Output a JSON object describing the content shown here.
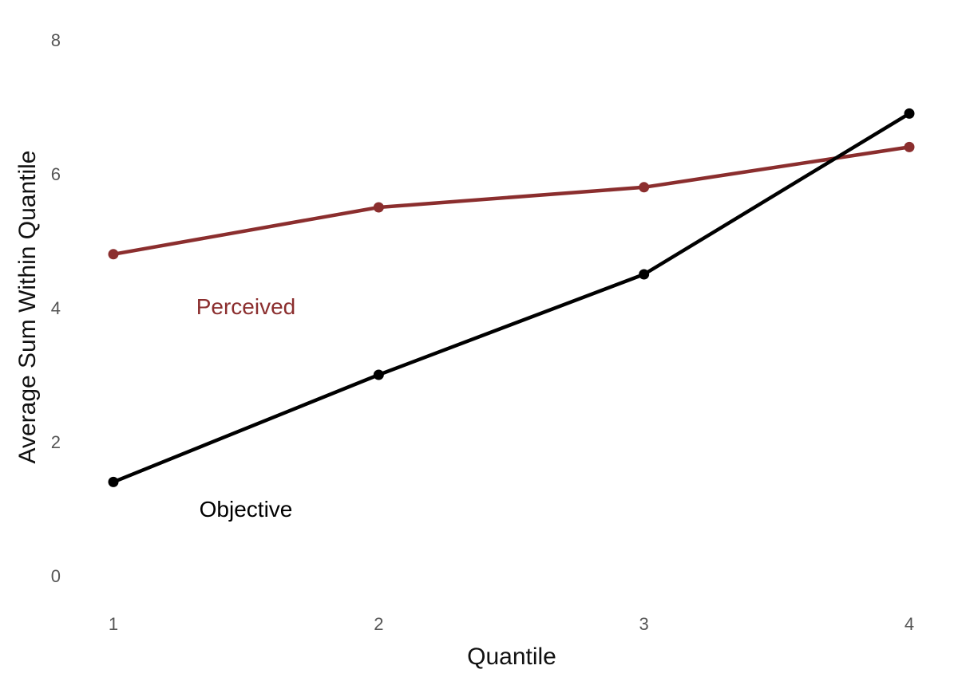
{
  "chart_data": {
    "type": "line",
    "title": "",
    "xlabel": "Quantile",
    "ylabel": "Average Sum Within Quantile",
    "x": [
      1,
      2,
      3,
      4
    ],
    "x_ticks": [
      "1",
      "2",
      "3",
      "4"
    ],
    "y_ticks": [
      "0",
      "2",
      "4",
      "6",
      "8"
    ],
    "ylim": [
      0,
      8
    ],
    "grid": false,
    "legend": "direct labels",
    "series": [
      {
        "name": "Perceived",
        "color": "#8b2e2e",
        "values": [
          4.8,
          5.5,
          5.8,
          6.4
        ]
      },
      {
        "name": "Objective",
        "color": "#000000",
        "values": [
          1.4,
          3.0,
          4.5,
          6.9
        ]
      }
    ]
  }
}
